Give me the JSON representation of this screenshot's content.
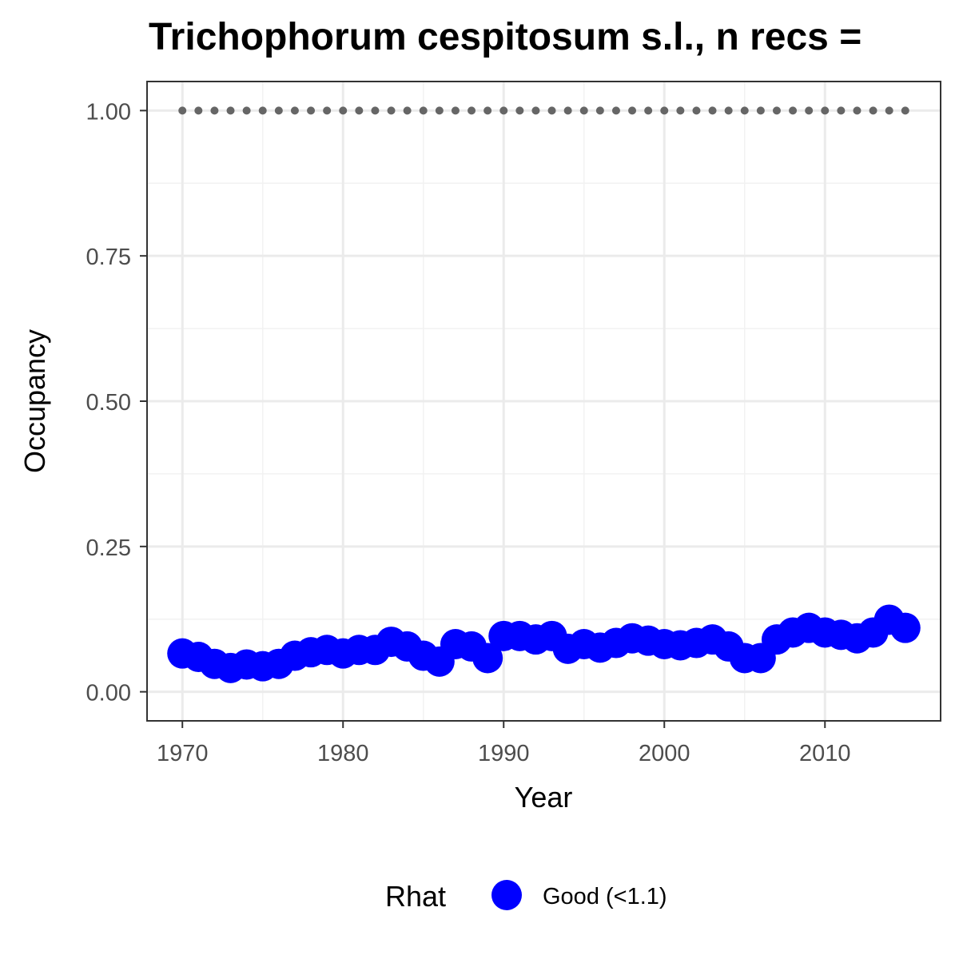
{
  "chart_data": {
    "type": "scatter",
    "title": "Trichophorum cespitosum s.l., n recs =",
    "xlabel": "Year",
    "ylabel": "Occupancy",
    "xlim": [
      1967.8,
      2017.2
    ],
    "ylim": [
      -0.05,
      1.05
    ],
    "x_ticks": [
      1970,
      1980,
      1990,
      2000,
      2010
    ],
    "x_tick_labels": [
      "1970",
      "1980",
      "1990",
      "2000",
      "2010"
    ],
    "y_ticks": [
      0.0,
      0.25,
      0.5,
      0.75,
      1.0
    ],
    "y_tick_labels": [
      "0.00",
      "0.25",
      "0.50",
      "0.75",
      "1.00"
    ],
    "grid": true,
    "legend_position": "bottom",
    "legend": {
      "title": "Rhat",
      "entries": [
        {
          "label": "Good (<1.1)",
          "color": "#0000ff"
        }
      ]
    },
    "series": [
      {
        "name": "Good (<1.1)",
        "color": "#0000ff",
        "marker": "large-circle",
        "x": [
          1970,
          1971,
          1972,
          1973,
          1974,
          1975,
          1976,
          1977,
          1978,
          1979,
          1980,
          1981,
          1982,
          1983,
          1984,
          1985,
          1986,
          1987,
          1988,
          1989,
          1990,
          1991,
          1992,
          1993,
          1994,
          1995,
          1996,
          1997,
          1998,
          1999,
          2000,
          2001,
          2002,
          2003,
          2004,
          2005,
          2006,
          2007,
          2008,
          2009,
          2010,
          2011,
          2012,
          2013,
          2014,
          2015
        ],
        "values": [
          0.066,
          0.06,
          0.048,
          0.041,
          0.047,
          0.044,
          0.048,
          0.062,
          0.068,
          0.072,
          0.066,
          0.072,
          0.072,
          0.086,
          0.078,
          0.062,
          0.052,
          0.082,
          0.078,
          0.058,
          0.096,
          0.096,
          0.09,
          0.096,
          0.074,
          0.082,
          0.076,
          0.084,
          0.092,
          0.088,
          0.082,
          0.08,
          0.084,
          0.09,
          0.078,
          0.058,
          0.058,
          0.09,
          0.102,
          0.11,
          0.102,
          0.098,
          0.092,
          0.102,
          0.124,
          0.11
        ]
      },
      {
        "name": "",
        "color": "#666666",
        "marker": "small-dot",
        "x": [
          1970,
          1971,
          1972,
          1973,
          1974,
          1975,
          1976,
          1977,
          1978,
          1979,
          1980,
          1981,
          1982,
          1983,
          1984,
          1985,
          1986,
          1987,
          1988,
          1989,
          1990,
          1991,
          1992,
          1993,
          1994,
          1995,
          1996,
          1997,
          1998,
          1999,
          2000,
          2001,
          2002,
          2003,
          2004,
          2005,
          2006,
          2007,
          2008,
          2009,
          2010,
          2011,
          2012,
          2013,
          2014,
          2015
        ],
        "values": [
          1,
          1,
          1,
          1,
          1,
          1,
          1,
          1,
          1,
          1,
          1,
          1,
          1,
          1,
          1,
          1,
          1,
          1,
          1,
          1,
          1,
          1,
          1,
          1,
          1,
          1,
          1,
          1,
          1,
          1,
          1,
          1,
          1,
          1,
          1,
          1,
          1,
          1,
          1,
          1,
          1,
          1,
          1,
          1,
          1,
          1
        ]
      }
    ]
  },
  "colors": {
    "panel_border": "#333333",
    "grid_major": "#ebebeb",
    "grid_minor": "#f2f2f2",
    "tick_text": "#4d4d4d"
  }
}
